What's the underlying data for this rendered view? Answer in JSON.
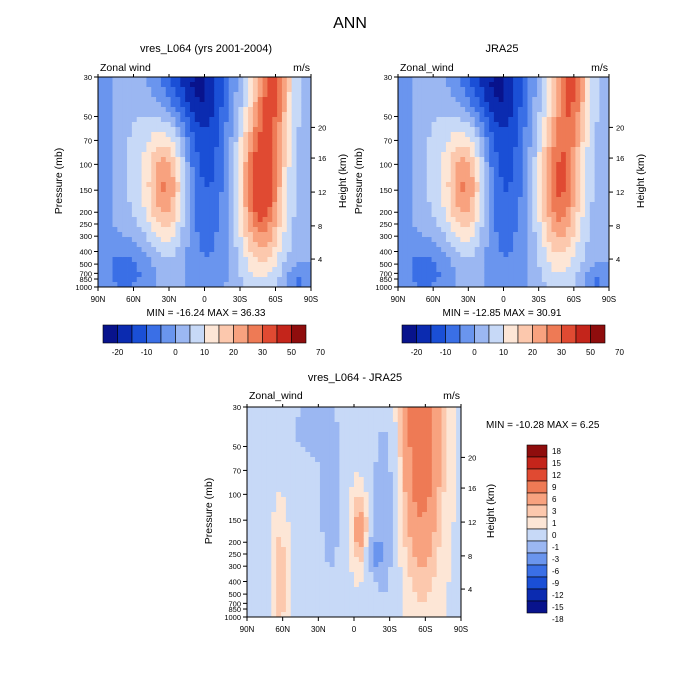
{
  "page_title": "ANN",
  "colors": {
    "neg": [
      "#08138c",
      "#0b2bb0",
      "#1a4fd6",
      "#3a6fe6",
      "#6a95ee",
      "#9bb7f2",
      "#c7d9f7"
    ],
    "pos": [
      "#fde6d6",
      "#fcc8ad",
      "#f8a27f",
      "#ee7a55",
      "#e04a32",
      "#c4251b",
      "#8f0d0d"
    ]
  },
  "chart_data": [
    {
      "type": "heatmap",
      "title": "vres_L064 (yrs 2001-2004)",
      "corner_left": "Zonal wind",
      "corner_right": "m/s",
      "ylabel": "Pressure (mb)",
      "ylabel_right": "Height (km)",
      "x_ticks": [
        "90N",
        "60N",
        "30N",
        "0",
        "30S",
        "60S",
        "90S"
      ],
      "y_ticks": [
        "30",
        "50",
        "70",
        "100",
        "150",
        "200",
        "250",
        "300",
        "400",
        "500",
        "700",
        "850",
        "1000"
      ],
      "y_ticks_right": [
        "20",
        "16",
        "12",
        "8",
        "4"
      ],
      "stats": "MIN = -16.24   MAX =  36.33",
      "colorbar_labels": [
        "-20",
        "-10",
        "0",
        "10",
        "20",
        "30",
        "50",
        "70"
      ]
    },
    {
      "type": "heatmap",
      "title": "JRA25",
      "corner_left": "Zonal_wind",
      "corner_right": "m/s",
      "ylabel": "Pressure (mb)",
      "ylabel_right": "Height (km)",
      "x_ticks": [
        "90N",
        "60N",
        "30N",
        "0",
        "30S",
        "60S",
        "90S"
      ],
      "y_ticks": [
        "30",
        "50",
        "70",
        "100",
        "150",
        "200",
        "250",
        "300",
        "400",
        "500",
        "700",
        "850",
        "1000"
      ],
      "y_ticks_right": [
        "20",
        "16",
        "12",
        "8",
        "4"
      ],
      "stats": "MIN = -12.85   MAX =  30.91",
      "colorbar_labels": [
        "-20",
        "-10",
        "0",
        "10",
        "20",
        "30",
        "50",
        "70"
      ]
    },
    {
      "type": "heatmap",
      "title": "vres_L064 - JRA25",
      "corner_left": "Zonal_wind",
      "corner_right": "m/s",
      "ylabel": "Pressure (mb)",
      "ylabel_right": "Height (km)",
      "x_ticks": [
        "90N",
        "60N",
        "30N",
        "0",
        "30S",
        "60S",
        "90S"
      ],
      "y_ticks": [
        "30",
        "50",
        "70",
        "100",
        "150",
        "200",
        "250",
        "300",
        "400",
        "500",
        "700",
        "850",
        "1000"
      ],
      "y_ticks_right": [
        "20",
        "16",
        "12",
        "8",
        "4"
      ],
      "stats": "MIN = -10.28   MAX =   6.25",
      "colorbar_labels": [
        "18",
        "15",
        "12",
        "9",
        "6",
        "3",
        "1",
        "0",
        "-1",
        "-3",
        "-6",
        "-9",
        "-12",
        "-15",
        "-18"
      ]
    }
  ]
}
